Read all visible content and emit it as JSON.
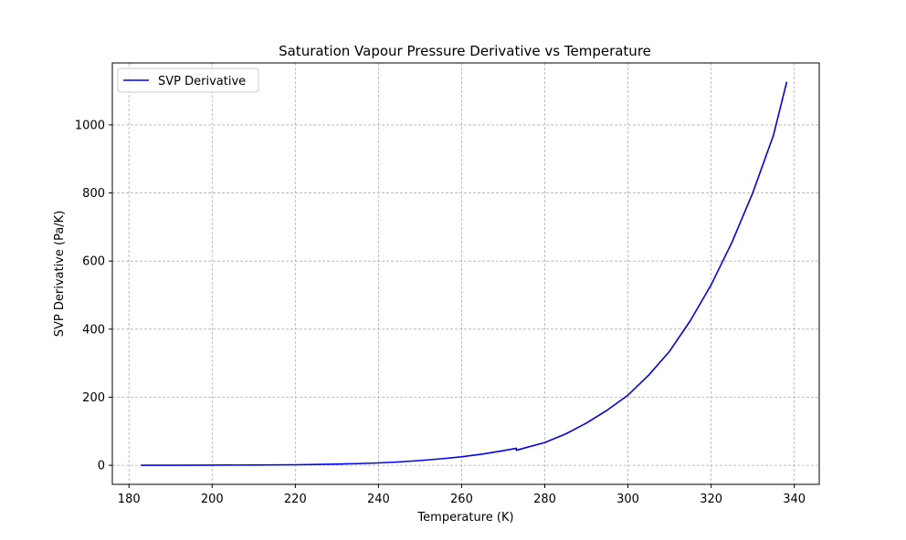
{
  "chart_data": {
    "type": "line",
    "title": "Saturation Vapour Pressure Derivative vs Temperature",
    "xlabel": "Temperature (K)",
    "ylabel": "SVP Derivative (Pa/K)",
    "xlim": [
      176,
      346
    ],
    "ylim": [
      -56,
      1182
    ],
    "xticks": [
      180,
      200,
      220,
      240,
      260,
      280,
      300,
      320,
      340
    ],
    "xtick_labels": [
      "180",
      "200",
      "220",
      "240",
      "260",
      "280",
      "300",
      "320",
      "340"
    ],
    "yticks": [
      0,
      200,
      400,
      600,
      800,
      1000
    ],
    "ytick_labels": [
      "0",
      "200",
      "400",
      "600",
      "800",
      "1000"
    ],
    "grid": true,
    "legend": {
      "position": "top-left",
      "entries": [
        "SVP Derivative"
      ]
    },
    "series": [
      {
        "name": "SVP Derivative",
        "color": "#0000ff",
        "segments": [
          {
            "x": [
              183,
              190,
              200,
              210,
              220,
              225,
              230,
              235,
              240,
              245,
              250,
              255,
              260,
              265,
              270,
              273.15
            ],
            "y": [
              0.1,
              0.2,
              0.4,
              0.9,
              1.6,
              2.4,
              3.5,
              5.0,
              7.0,
              10.0,
              14.0,
              19.0,
              25.0,
              33.0,
              43.0,
              50.0
            ]
          },
          {
            "x": [
              273.15,
              274,
              280,
              285,
              290,
              295,
              300,
              305,
              310,
              315,
              320,
              325,
              330,
              335,
              338.15
            ],
            "y": [
              44.0,
              47.0,
              67.0,
              92.0,
              124.0,
              162.0,
              206.0,
              265.0,
              335.0,
              425.0,
              530.0,
              655.0,
              800.0,
              970.0,
              1125.0
            ]
          }
        ]
      }
    ]
  }
}
